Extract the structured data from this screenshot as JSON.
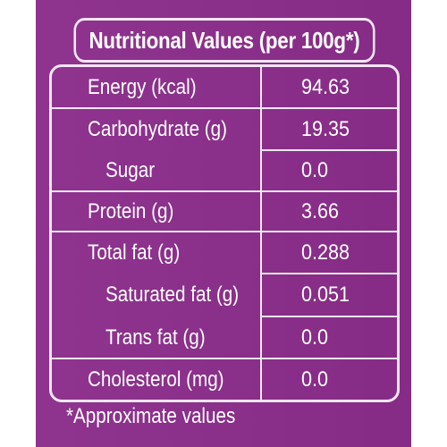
{
  "title": "Nutritional Values (per 100g*)",
  "rows": [
    {
      "label": "Energy (kcal)",
      "value": "94.63"
    },
    {
      "label": "Carbohydrate (g)",
      "value": "19.35"
    },
    {
      "label": "Sugar",
      "value": "0.0"
    },
    {
      "label": "Protein (g)",
      "value": "3.66"
    },
    {
      "label": "Total fat (g)",
      "value": "0.288"
    },
    {
      "label": "Saturated fat (g)",
      "value": "0.051"
    },
    {
      "label": "Trans fat (g)",
      "value": "0.0"
    },
    {
      "label": "Cholesterol (mg)",
      "value": "0.0"
    }
  ],
  "footnote": "*Approximate values",
  "colors": {
    "background": "#8b2d8b",
    "border": "#f3e6f3",
    "text": "#ffffff"
  }
}
